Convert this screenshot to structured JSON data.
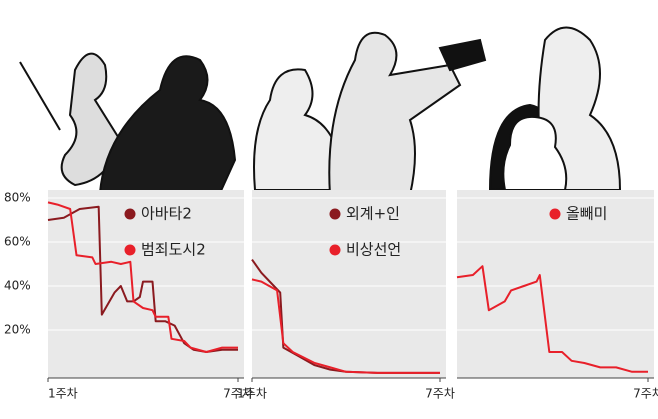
{
  "chart_data": [
    {
      "type": "line",
      "xlim": [
        1,
        7
      ],
      "xticks": [
        {
          "value": 1,
          "label": "1주차"
        },
        {
          "value": 7,
          "label": "7주차"
        }
      ],
      "ylim": [
        0,
        80
      ],
      "yticks": [
        {
          "value": 20,
          "label": "20%"
        },
        {
          "value": 40,
          "label": "40%"
        },
        {
          "value": 60,
          "label": "60%"
        },
        {
          "value": 80,
          "label": "80%"
        }
      ],
      "series": [
        {
          "name": "아바타2",
          "color": "#8b1a1f",
          "x": [
            1,
            1.5,
            2,
            2.6,
            2.7,
            3.1,
            3.3,
            3.5,
            3.7,
            3.9,
            4,
            4.3,
            4.4,
            4.7,
            5,
            5.3,
            5.6,
            6,
            6.5,
            7
          ],
          "values": [
            70,
            71,
            75,
            76,
            27,
            37,
            40,
            33,
            33,
            35,
            42,
            42,
            24,
            24,
            22,
            14,
            11,
            10,
            11,
            11
          ]
        },
        {
          "name": "범죄도시2",
          "color": "#e8202a",
          "x": [
            1,
            1.3,
            1.7,
            1.9,
            2.4,
            2.5,
            3,
            3.3,
            3.6,
            3.7,
            4,
            4.3,
            4.4,
            4.8,
            4.9,
            5.3,
            5.5,
            6,
            6.5,
            7
          ],
          "values": [
            78,
            77,
            75,
            54,
            53,
            50,
            51,
            50,
            51,
            33,
            30,
            29,
            26,
            26,
            16,
            15,
            12,
            10,
            12,
            12
          ]
        }
      ]
    },
    {
      "type": "line",
      "xlim": [
        1,
        7
      ],
      "xticks": [
        {
          "value": 1,
          "label": "1주차"
        },
        {
          "value": 7,
          "label": "7주차"
        }
      ],
      "ylim": [
        0,
        80
      ],
      "series": [
        {
          "name": "외계+인",
          "color": "#8b1a1f",
          "x": [
            1,
            1.3,
            1.7,
            1.9,
            2,
            2.5,
            3,
            3.5,
            4,
            5,
            7
          ],
          "values": [
            52,
            46,
            40,
            37,
            12,
            8,
            4,
            2,
            1,
            0.5,
            0.5
          ]
        },
        {
          "name": "비상선언",
          "color": "#e8202a",
          "x": [
            1,
            1.3,
            1.8,
            2,
            2.3,
            3,
            3.5,
            4,
            5,
            7
          ],
          "values": [
            43,
            42,
            38,
            14,
            10,
            5,
            3,
            1,
            0.5,
            0.5
          ]
        }
      ]
    },
    {
      "type": "line",
      "xlim": [
        1,
        7
      ],
      "xticks": [
        {
          "value": 7,
          "label": "7주차"
        }
      ],
      "ylim": [
        0,
        80
      ],
      "series": [
        {
          "name": "올빼미",
          "color": "#e8202a",
          "x": [
            1,
            1.5,
            1.8,
            2,
            2.5,
            2.7,
            3.1,
            3.5,
            3.6,
            3.9,
            4.3,
            4.6,
            5,
            5.5,
            6,
            6.5,
            7
          ],
          "values": [
            44,
            45,
            49,
            29,
            33,
            38,
            40,
            42,
            45,
            10,
            10,
            6,
            5,
            3,
            3,
            1,
            1
          ]
        }
      ]
    }
  ]
}
